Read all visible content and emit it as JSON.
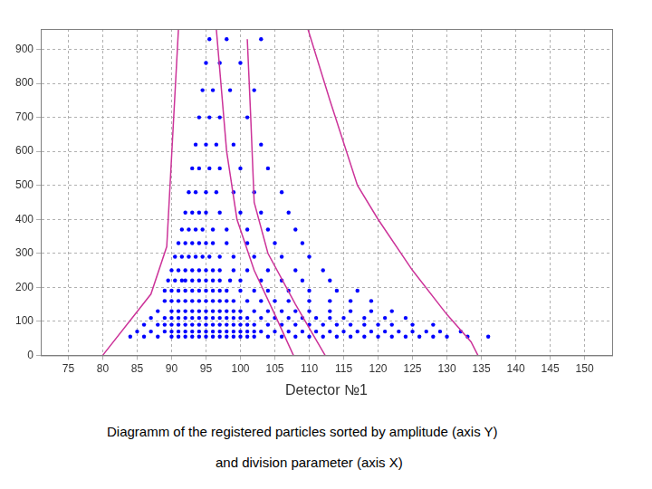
{
  "chart_data": {
    "type": "scatter",
    "x_label": "Detector №1",
    "annotations": [
      "Diagramm of the registered particles sorted by amplitude (axis Y)",
      "and division parameter (axis X)"
    ],
    "xlim": [
      71,
      154
    ],
    "xticks": [
      75,
      80,
      85,
      90,
      95,
      100,
      105,
      110,
      115,
      120,
      125,
      130,
      135,
      140,
      145,
      150
    ],
    "ylim": [
      0,
      960
    ],
    "yticks": [
      0,
      100,
      200,
      300,
      400,
      500,
      600,
      700,
      800,
      900
    ],
    "grid": true,
    "series": [
      {
        "type": "scatter",
        "color": "#0000ff",
        "marker": "dot",
        "x": [
          84,
          86,
          88,
          90,
          91,
          92,
          93,
          94,
          95,
          96,
          97,
          98,
          99,
          100,
          101,
          102,
          104,
          106,
          108,
          110,
          112,
          114,
          116,
          118,
          120,
          122,
          124,
          126,
          128,
          130,
          133,
          136,
          85,
          87,
          89,
          90,
          91,
          92,
          93,
          94,
          95,
          96,
          97,
          98,
          99,
          100,
          101,
          102,
          103,
          105,
          107,
          109,
          111,
          113,
          115,
          117,
          119,
          121,
          123,
          125,
          127,
          129,
          132,
          86,
          88,
          89,
          90,
          91,
          92,
          93,
          94,
          95,
          96,
          97,
          98,
          99,
          100,
          101,
          102,
          104,
          106,
          108,
          110,
          112,
          114,
          116,
          118,
          120,
          122,
          125,
          128,
          87,
          89,
          90,
          91,
          92,
          93,
          94,
          95,
          96,
          97,
          98,
          99,
          100,
          101,
          103,
          105,
          107,
          109,
          111,
          113,
          115,
          118,
          121,
          124,
          88,
          90,
          91,
          92,
          93,
          94,
          95,
          96,
          97,
          98,
          99,
          100,
          102,
          104,
          106,
          108,
          110,
          113,
          116,
          119,
          122,
          89,
          90,
          91,
          92,
          93,
          94,
          95,
          96,
          97,
          98,
          99,
          101,
          103,
          105,
          107,
          110,
          113,
          116,
          119,
          89,
          90,
          91,
          92,
          93,
          94,
          95,
          96,
          97,
          98,
          100,
          102,
          104,
          107,
          110,
          114,
          117,
          89.5,
          90.5,
          91.5,
          92,
          93,
          94,
          95,
          96,
          97,
          98.5,
          100,
          103,
          106,
          109,
          113,
          90,
          91,
          92,
          93,
          94,
          95,
          96,
          97,
          99,
          101,
          104,
          108,
          112,
          90.5,
          91.5,
          92.5,
          93.5,
          94.5,
          95.5,
          97,
          99,
          102,
          106,
          110,
          91,
          92,
          93,
          94,
          95,
          96,
          98,
          101,
          105,
          109,
          91.5,
          92.5,
          93.5,
          94.5,
          96,
          98,
          101,
          104,
          108,
          92,
          93,
          94,
          95,
          97,
          100,
          103,
          107,
          92.5,
          93.5,
          95,
          96.5,
          99,
          102,
          106,
          93,
          94,
          95.5,
          97,
          100,
          104,
          93.5,
          95,
          96.5,
          99,
          103,
          94,
          95.5,
          97,
          101,
          94.5,
          96,
          98.5,
          102,
          95,
          97,
          100,
          95.5,
          98,
          103
        ],
        "values": [
          55,
          55,
          55,
          55,
          55,
          55,
          55,
          55,
          55,
          55,
          55,
          55,
          55,
          55,
          55,
          55,
          55,
          55,
          55,
          55,
          55,
          55,
          55,
          55,
          55,
          55,
          55,
          55,
          55,
          55,
          55,
          55,
          70,
          70,
          70,
          70,
          70,
          70,
          70,
          70,
          70,
          70,
          70,
          70,
          70,
          70,
          70,
          70,
          70,
          70,
          70,
          70,
          70,
          70,
          70,
          70,
          70,
          70,
          70,
          70,
          70,
          70,
          70,
          90,
          90,
          90,
          90,
          90,
          90,
          90,
          90,
          90,
          90,
          90,
          90,
          90,
          90,
          90,
          90,
          90,
          90,
          90,
          90,
          90,
          90,
          90,
          90,
          90,
          90,
          90,
          90,
          110,
          110,
          110,
          110,
          110,
          110,
          110,
          110,
          110,
          110,
          110,
          110,
          110,
          110,
          110,
          110,
          110,
          110,
          110,
          110,
          110,
          110,
          110,
          110,
          130,
          130,
          130,
          130,
          130,
          130,
          130,
          130,
          130,
          130,
          130,
          130,
          130,
          130,
          130,
          130,
          130,
          130,
          130,
          130,
          130,
          160,
          160,
          160,
          160,
          160,
          160,
          160,
          160,
          160,
          160,
          160,
          160,
          160,
          160,
          160,
          160,
          160,
          160,
          160,
          190,
          190,
          190,
          190,
          190,
          190,
          190,
          190,
          190,
          190,
          190,
          190,
          190,
          190,
          190,
          190,
          190,
          220,
          220,
          220,
          220,
          220,
          220,
          220,
          220,
          220,
          220,
          220,
          220,
          220,
          220,
          220,
          250,
          250,
          250,
          250,
          250,
          250,
          250,
          250,
          250,
          250,
          250,
          250,
          250,
          290,
          290,
          290,
          290,
          290,
          290,
          290,
          290,
          290,
          290,
          290,
          330,
          330,
          330,
          330,
          330,
          330,
          330,
          330,
          330,
          330,
          370,
          370,
          370,
          370,
          370,
          370,
          370,
          370,
          370,
          420,
          420,
          420,
          420,
          420,
          420,
          420,
          420,
          480,
          480,
          480,
          480,
          480,
          480,
          480,
          550,
          550,
          550,
          550,
          550,
          550,
          620,
          620,
          620,
          620,
          620,
          700,
          700,
          700,
          700,
          780,
          780,
          780,
          780,
          860,
          860,
          860,
          930,
          930,
          930
        ]
      },
      {
        "type": "line",
        "color": "#cc3399",
        "marker": "none",
        "line_style": "solid",
        "x": [
          80,
          87,
          89.3,
          91
        ],
        "values": [
          0,
          180,
          320,
          960
        ]
      },
      {
        "type": "line",
        "color": "#cc3399",
        "marker": "none",
        "line_style": "solid",
        "x": [
          96.5,
          98,
          99.5,
          102,
          105,
          107.7
        ],
        "values": [
          960,
          600,
          400,
          250,
          120,
          0
        ]
      },
      {
        "type": "line",
        "color": "#cc3399",
        "marker": "none",
        "line_style": "solid",
        "x": [
          101,
          101.5,
          102,
          104,
          108,
          112.3
        ],
        "values": [
          930,
          700,
          450,
          300,
          150,
          0
        ]
      },
      {
        "type": "line",
        "color": "#cc3399",
        "marker": "none",
        "line_style": "solid",
        "x": [
          109.8,
          113,
          117,
          120,
          125,
          130,
          133.5,
          134.5
        ],
        "values": [
          960,
          750,
          500,
          400,
          250,
          120,
          40,
          0
        ]
      }
    ]
  }
}
